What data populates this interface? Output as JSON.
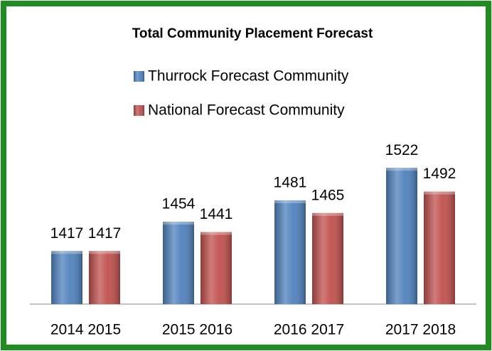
{
  "chart_data": {
    "type": "bar",
    "title": "Total Community Placement Forecast",
    "categories": [
      "2014 2015",
      "2015 2016",
      "2016 2017",
      "2017 2018"
    ],
    "series": [
      {
        "name": "Thurrock Forecast Community",
        "color": "#4f81bd",
        "values": [
          1417,
          1454,
          1481,
          1522
        ]
      },
      {
        "name": "National Forecast Community",
        "color": "#c0504d",
        "values": [
          1417,
          1441,
          1465,
          1492
        ]
      }
    ],
    "ylim": [
      1350,
      1550
    ]
  }
}
